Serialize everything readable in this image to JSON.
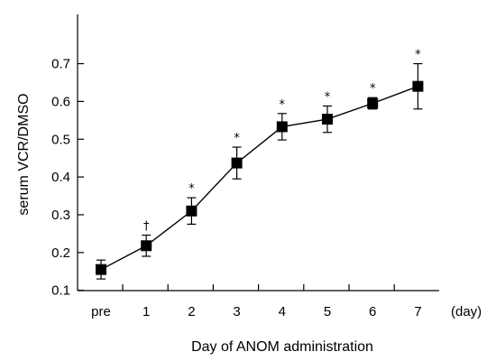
{
  "chart_data": {
    "type": "line",
    "title": "",
    "xlabel": "Day of ANOM administration",
    "ylabel": "serum VCR/DMSO",
    "x_unit": "(day)",
    "categories": [
      "pre",
      "1",
      "2",
      "3",
      "4",
      "5",
      "6",
      "7"
    ],
    "series": [
      {
        "values": [
          0.155,
          0.218,
          0.31,
          0.437,
          0.533,
          0.553,
          0.595,
          0.64
        ],
        "error": [
          0.025,
          0.028,
          0.035,
          0.042,
          0.035,
          0.035,
          0.015,
          0.06
        ]
      }
    ],
    "annotations": [
      "",
      "†",
      "*",
      "*",
      "*",
      "*",
      "*",
      "*"
    ],
    "yticks": [
      0.1,
      0.2,
      0.3,
      0.4,
      0.5,
      0.6,
      0.7
    ],
    "ytick_labels": [
      "0.1",
      "0.2",
      "0.3",
      "0.4",
      "0.5",
      "0.6",
      "0.7"
    ],
    "ylim": [
      0,
      0.72
    ],
    "grid": false,
    "colors": {
      "line": "#000000",
      "marker": "#000000"
    }
  }
}
